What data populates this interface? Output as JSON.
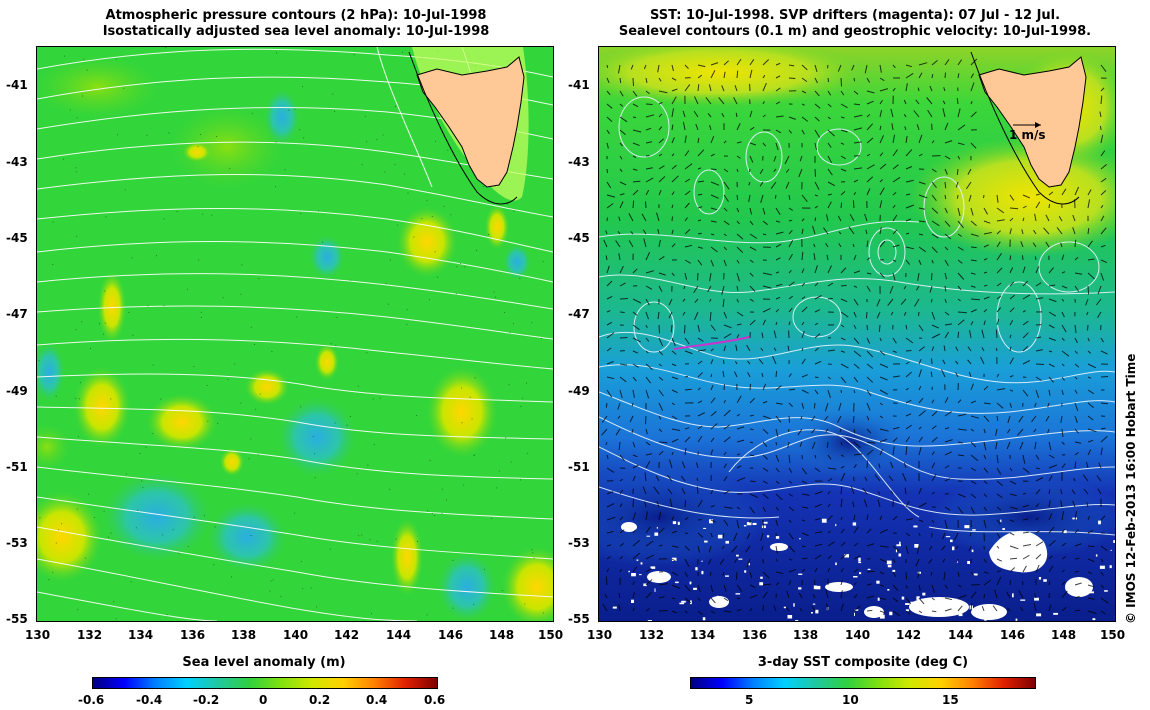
{
  "left": {
    "title_line1": "Atmospheric pressure contours (2 hPa): 10-Jul-1998",
    "title_line2": "Isostatically adjusted sea level anomaly: 10-Jul-1998",
    "colorbar_label": "Sea level anomaly (m)",
    "colorbar_ticks": [
      "-0.6",
      "-0.4",
      "-0.2",
      "0",
      "0.2",
      "0.4",
      "0.6"
    ]
  },
  "right": {
    "title_line1": "SST: 10-Jul-1998. SVP drifters (magenta): 07 Jul - 12 Jul.",
    "title_line2": "Sealevel contours (0.1 m) and geostrophic velocity: 10-Jul-1998.",
    "scale_arrow_label": "1 m/s",
    "colorbar_label": "3-day SST composite (deg C)",
    "colorbar_ticks": [
      "5",
      "10",
      "15"
    ]
  },
  "axes": {
    "lat_ticks": [
      "-41",
      "-43",
      "-45",
      "-47",
      "-49",
      "-51",
      "-53",
      "-55"
    ],
    "lon_ticks": [
      "130",
      "132",
      "134",
      "136",
      "138",
      "140",
      "142",
      "144",
      "146",
      "148",
      "150"
    ]
  },
  "credit": "© IMOS 12-Feb-2013 16:00 Hobart Time",
  "colors": {
    "ocean_green": "#2fd63a",
    "land": "#ffc896",
    "contour_white": "#ffffff",
    "drifter_magenta": "#cc33cc"
  }
}
